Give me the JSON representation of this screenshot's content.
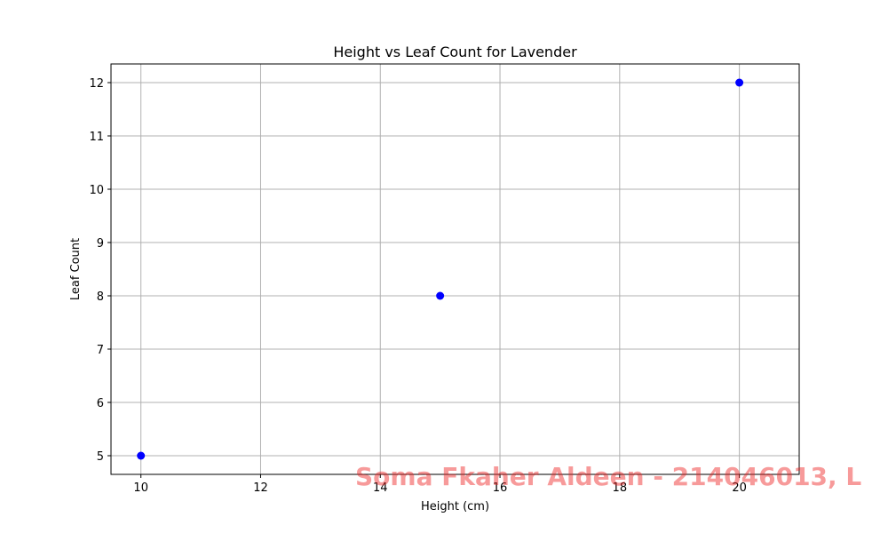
{
  "chart_data": {
    "type": "scatter",
    "title": "Height vs Leaf Count for Lavender",
    "xlabel": "Height (cm)",
    "ylabel": "Leaf Count",
    "xlim": [
      9.5,
      21.0
    ],
    "ylim": [
      4.65,
      12.35
    ],
    "xticks": [
      10,
      12,
      14,
      16,
      18,
      20
    ],
    "yticks": [
      5,
      6,
      7,
      8,
      9,
      10,
      11,
      12
    ],
    "grid": true,
    "points": [
      {
        "x": 10,
        "y": 5
      },
      {
        "x": 15,
        "y": 8
      },
      {
        "x": 20,
        "y": 12
      }
    ],
    "point_color": "#0000ff",
    "grid_color": "#b0b0b0"
  },
  "watermark": {
    "text": "Soma Fkaher Aldeen - 214046013, L",
    "color": "#ee2222"
  }
}
